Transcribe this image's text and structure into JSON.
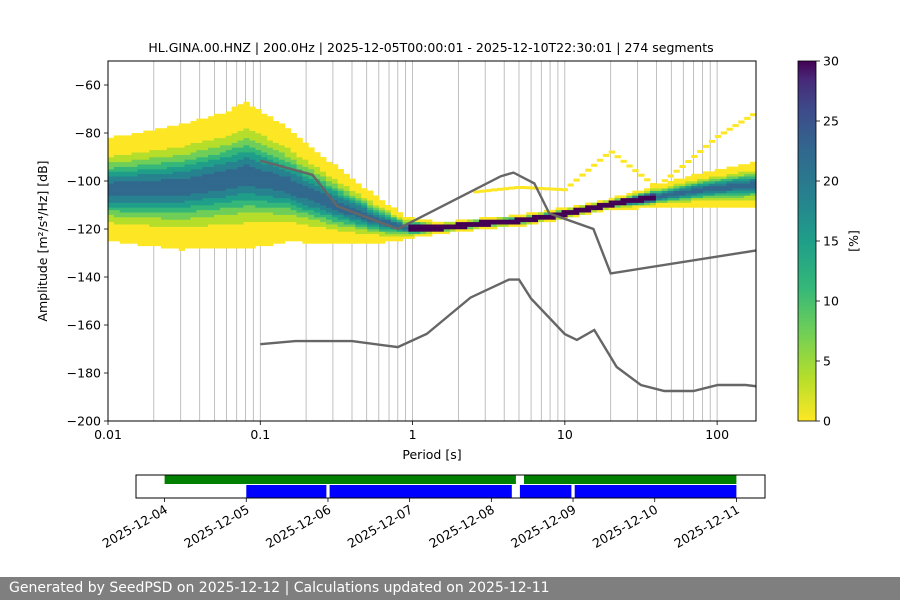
{
  "title": "HL.GINA.00.HNZ | 200.0Hz | 2025-12-05T00:00:01 - 2025-12-10T22:30:01 | 274 segments",
  "footer": {
    "text": "Generated by SeedPSD on 2025-12-12 | Calculations updated on 2025-12-11"
  },
  "colors": {
    "noise_model": "#666666",
    "timeline_green": "#008000",
    "timeline_blue": "#0000ff",
    "footer_bg": "#7f7f7f",
    "grid": "#b0b0b0"
  },
  "chart_data": [
    {
      "type": "heatmap",
      "title": "HL.GINA.00.HNZ | 200.0Hz | 2025-12-05T00:00:01 - 2025-12-10T22:30:01 | 274 segments",
      "xlabel": "Period [s]",
      "ylabel": "Amplitude [m²/s⁴/Hz] [dB]",
      "x_scale": "log",
      "xlim": [
        0.01,
        180
      ],
      "ylim": [
        -200,
        -50
      ],
      "xticks": [
        0.01,
        0.1,
        1,
        10,
        100
      ],
      "xtick_labels": [
        "0.01",
        "0.1",
        "1",
        "10",
        "100"
      ],
      "yticks": [
        -200,
        -180,
        -160,
        -140,
        -120,
        -100,
        -80,
        -60
      ],
      "grid": "vertical minor and major lines on x",
      "colorbar": {
        "label": "[%]",
        "range": [
          0,
          30
        ],
        "ticks": [
          0,
          5,
          10,
          15,
          20,
          25,
          30
        ],
        "colormap": "viridis_r"
      },
      "ppsd_mode": {
        "period": [
          0.01,
          0.03,
          0.06,
          0.08,
          0.15,
          0.3,
          0.6,
          0.9,
          1.5,
          3,
          5,
          8,
          12,
          20,
          40,
          80,
          180
        ],
        "db": [
          -104,
          -103,
          -100,
          -98,
          -102,
          -110,
          -117,
          -120,
          -120,
          -118,
          -117,
          -115,
          -113,
          -110,
          -107,
          -104,
          -102
        ],
        "spread_db": [
          9,
          11,
          12,
          13,
          10,
          7,
          4,
          2,
          1,
          1,
          1,
          1,
          1,
          1,
          2,
          3,
          4
        ]
      },
      "ppsd_secondary": {
        "period": [
          2.5,
          5,
          10,
          20,
          40,
          60,
          100,
          180
        ],
        "db": [
          -105,
          -103,
          -104,
          -88,
          -103,
          -94,
          -82,
          -72
        ]
      },
      "noise_models": [
        {
          "name": "NHNM",
          "period": [
            0.1,
            0.22,
            0.32,
            0.8,
            3.8,
            4.6,
            6.3,
            7.9,
            15.4,
            20,
            354.8
          ],
          "db": [
            -91.5,
            -97.4,
            -110.5,
            -120,
            -98,
            -96.5,
            -101,
            -113.5,
            -120,
            -138.5,
            -126
          ]
        },
        {
          "name": "NLNM",
          "period": [
            0.1,
            0.17,
            0.4,
            0.8,
            1.24,
            2.4,
            4.3,
            5,
            6,
            10,
            12,
            15.6,
            21.9,
            31.6,
            45,
            70,
            101,
            154,
            328
          ],
          "db": [
            -168,
            -166.7,
            -166.7,
            -169.2,
            -163.7,
            -148.6,
            -141.1,
            -141.1,
            -149,
            -163.8,
            -166.2,
            -162.1,
            -177.5,
            -185,
            -187.5,
            -187.5,
            -185,
            -185,
            -187.5
          ]
        }
      ]
    },
    {
      "type": "timeline",
      "xtick_labels": [
        "2025-12-04",
        "2025-12-05",
        "2025-12-06",
        "2025-12-07",
        "2025-12-08",
        "2025-12-09",
        "2025-12-10",
        "2025-12-11"
      ],
      "xlim_days": [
        -0.35,
        7.35
      ],
      "data_segments": [
        [
          0,
          4.3
        ],
        [
          4.4,
          7
        ]
      ],
      "ppsd_segments": [
        [
          1,
          1.98
        ],
        [
          2.02,
          4.25
        ],
        [
          4.35,
          4.98
        ],
        [
          5.02,
          7
        ]
      ]
    }
  ]
}
